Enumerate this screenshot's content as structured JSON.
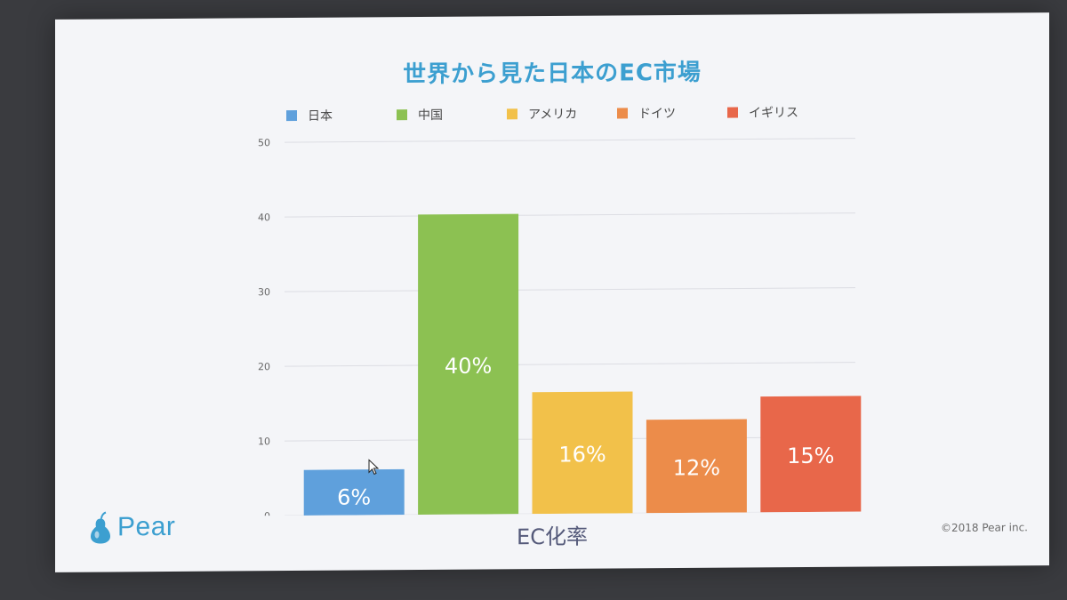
{
  "slide": {
    "title": "世界から見た日本のEC市場",
    "logo_text": "Pear",
    "copyright": "©2018 Pear inc."
  },
  "chart_data": {
    "type": "bar",
    "title": "世界から見た日本のEC市場",
    "xlabel": "EC化率",
    "ylabel": "",
    "ylim": [
      0,
      50
    ],
    "yticks": [
      0,
      10,
      20,
      30,
      40,
      50
    ],
    "grid": true,
    "legend_position": "top",
    "categories": [
      "日本",
      "中国",
      "アメリカ",
      "ドイツ",
      "イギリス"
    ],
    "values": [
      6,
      40,
      16,
      12,
      15
    ],
    "bar_heights": [
      6.1,
      40.2,
      16.3,
      12.5,
      15.5
    ],
    "data_labels": [
      "6%",
      "40%",
      "16%",
      "12%",
      "15%"
    ],
    "colors": [
      "#5fa0dc",
      "#8cc152",
      "#f2c14a",
      "#ec8c4a",
      "#e8674a"
    ]
  }
}
